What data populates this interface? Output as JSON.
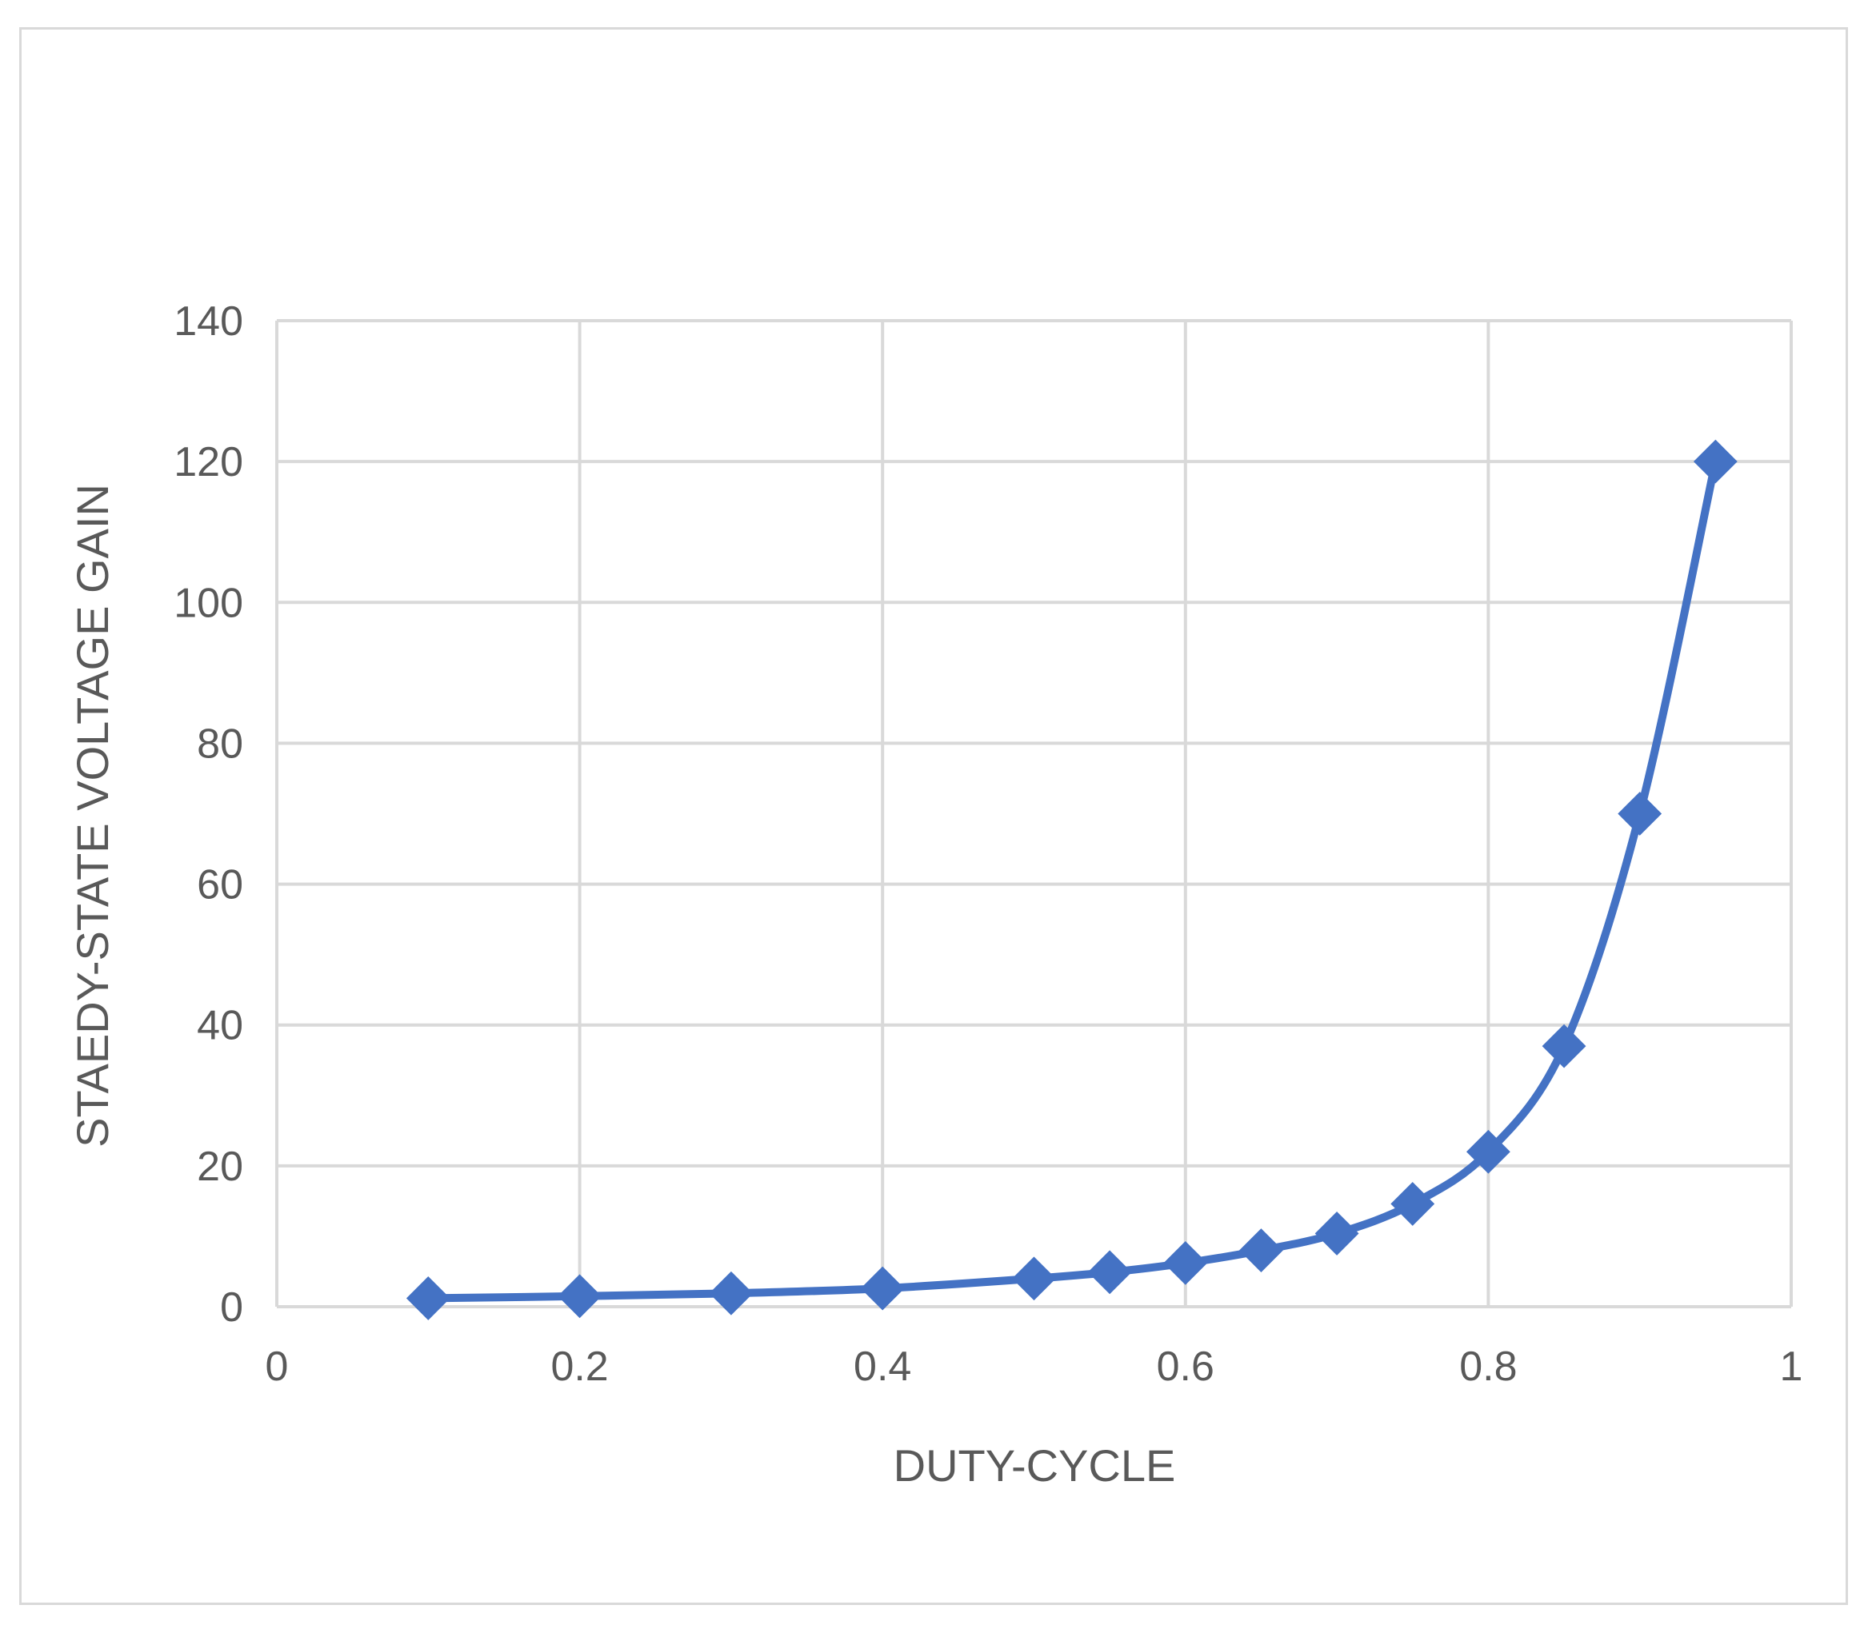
{
  "chart_data": {
    "type": "scatter",
    "title": "",
    "xlabel": "DUTY-CYCLE",
    "ylabel": "STAEDY-STATE VOLTAGE GAIN",
    "xlim": [
      0,
      1
    ],
    "ylim": [
      0,
      140
    ],
    "x_ticks": [
      "0",
      "0.2",
      "0.4",
      "0.6",
      "0.8",
      "1"
    ],
    "y_ticks": [
      "0",
      "20",
      "40",
      "60",
      "80",
      "100",
      "120",
      "140"
    ],
    "grid": true,
    "legend": "none",
    "line_style": "smooth line with diamond markers",
    "series": [
      {
        "color": "#4472c4",
        "x": [
          0.1,
          0.2,
          0.3,
          0.4,
          0.5,
          0.55,
          0.6,
          0.65,
          0.7,
          0.75,
          0.8,
          0.85,
          0.9,
          0.95
        ],
        "y": [
          1.2,
          1.5,
          1.9,
          2.6,
          4,
          4.9,
          6.2,
          8,
          10.4,
          14.6,
          22,
          37,
          70,
          120
        ]
      }
    ]
  }
}
